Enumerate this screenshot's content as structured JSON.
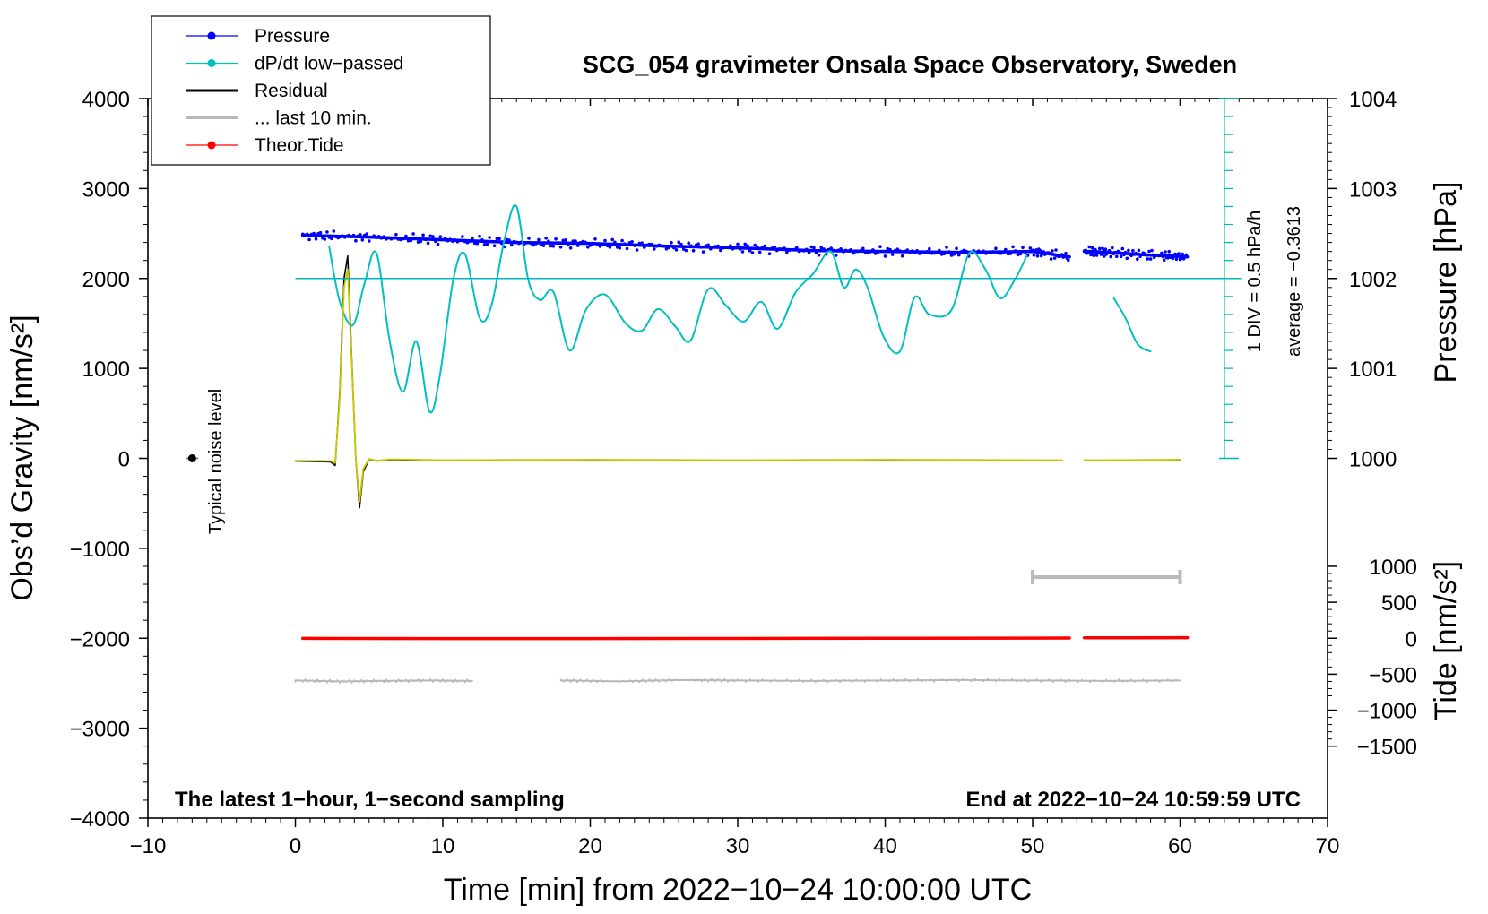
{
  "chart_data": {
    "type": "line",
    "title": "SCG_054 gravimeter Onsala Space Observatory, Sweden",
    "xlabel": "Time [min] from 2022−10−24 10:00:00 UTC",
    "ylabel_left": "Obs’d Gravity [nm/s²]",
    "ylabel_right_top": "Pressure [hPa]",
    "ylabel_right_bottom": "Tide [nm/s²]",
    "xlim": [
      -10,
      70
    ],
    "ylim_left": [
      -4000,
      4000
    ],
    "x_ticks": [
      -10,
      0,
      10,
      20,
      30,
      40,
      50,
      60,
      70
    ],
    "x_tick_labels": [
      "−10",
      "0",
      "10",
      "20",
      "30",
      "40",
      "50",
      "60",
      "70"
    ],
    "y_left_ticks": [
      4000,
      3000,
      2000,
      1000,
      0,
      -1000,
      -2000,
      -3000,
      -4000
    ],
    "y_left_tick_labels": [
      "4000",
      "3000",
      "2000",
      "1000",
      "0",
      "−1000",
      "−2000",
      "−3000",
      "−4000"
    ],
    "pressure_axis": {
      "ticks": [
        1000,
        1001,
        1002,
        1003,
        1004
      ],
      "tick_labels": [
        "1000",
        "1001",
        "1002",
        "1003",
        "1004"
      ],
      "left_units_per_hpa": 1000,
      "ref_left": 2000,
      "ref_hpa": 1002
    },
    "tide_axis": {
      "ticks": [
        1000,
        500,
        0,
        -500,
        -1000,
        -1500
      ],
      "tick_labels": [
        "1000",
        "500",
        "0",
        "−500",
        "−1000",
        "−1500"
      ],
      "left_units_per_tide": 0.8,
      "ref_left": -2000,
      "ref_tide": 0
    },
    "legend": [
      {
        "label": "Pressure",
        "color": "#0000ff",
        "marker": true
      },
      {
        "label": "dP/dt low−passed",
        "color": "#00c0c0",
        "marker": true
      },
      {
        "label": "Residual",
        "color": "#000000",
        "marker": false
      },
      {
        "label": "... last 10 min.",
        "color": "#b8b8b8",
        "marker": false
      },
      {
        "label": "Theor.Tide",
        "color": "#ff0000",
        "marker": true
      }
    ],
    "annotations": {
      "noise_label": "Typical noise level",
      "noise_x": -7,
      "noise_y": 0,
      "div_label": "1 DIV = 0.5 hPa/h",
      "avg_label": "average = −0.3613",
      "bottom_left": "The latest 1−hour, 1−second sampling",
      "bottom_right": "End at 2022−10−24 10:59:59 UTC",
      "dpdt_baseline_left": 2000,
      "div_scale_x": 63,
      "div_scale_range_left": [
        0,
        4000
      ],
      "last10_bar_x": [
        50,
        60
      ],
      "last10_bar_left": -1320
    },
    "series": [
      {
        "name": "Pressure",
        "color": "#0000ff",
        "unit": "hPa",
        "segments": [
          {
            "x": [
              0.5,
              5,
              10,
              15,
              20,
              25,
              30,
              35,
              40,
              45,
              50,
              52.5
            ],
            "y": [
              1002.48,
              1002.46,
              1002.43,
              1002.4,
              1002.39,
              1002.36,
              1002.34,
              1002.31,
              1002.3,
              1002.29,
              1002.3,
              1002.24
            ]
          },
          {
            "x": [
              53.5,
              55,
              58,
              60.5
            ],
            "y": [
              1002.3,
              1002.29,
              1002.26,
              1002.24
            ]
          }
        ]
      },
      {
        "name": "dP/dt low-passed",
        "color": "#00c0c0",
        "unit": "nm/s² (plotted)",
        "segments": [
          {
            "x": [
              2.3,
              3.0,
              3.9,
              4.7,
              5.5,
              6.4,
              7.3,
              8.2,
              9.1,
              9.8,
              10.7,
              11.5,
              12.5,
              13.3,
              14.2,
              15.0,
              15.8,
              16.6,
              17.5,
              18.6,
              19.7,
              21.0,
              22.4,
              23.5,
              24.6,
              25.8,
              26.8,
              28.0,
              29.2,
              30.4,
              31.6,
              32.7,
              33.9,
              35.1,
              36.3,
              37.2,
              38.0,
              38.8,
              39.9,
              41.0,
              42.0,
              43.0,
              44.5,
              45.7,
              46.8,
              47.8,
              48.8,
              49.6
            ],
            "y": [
              2350,
              1750,
              1480,
              1950,
              2280,
              1300,
              740,
              1300,
              520,
              920,
              1980,
              2270,
              1560,
              1700,
              2450,
              2800,
              1980,
              1760,
              1850,
              1200,
              1650,
              1820,
              1500,
              1420,
              1660,
              1460,
              1310,
              1880,
              1700,
              1520,
              1740,
              1440,
              1840,
              2050,
              2300,
              1900,
              2100,
              1900,
              1350,
              1190,
              1790,
              1600,
              1650,
              2280,
              2100,
              1780,
              1990,
              2250
            ]
          },
          {
            "x": [
              55.5,
              56.3,
              57.0,
              57.5,
              58.0
            ],
            "y": [
              1780,
              1560,
              1300,
              1220,
              1190
            ]
          }
        ]
      },
      {
        "name": "Residual",
        "color": "#000000",
        "unit": "nm/s²",
        "segments": [
          {
            "x": [
              0,
              2.4,
              2.7,
              3.0,
              3.3,
              3.55,
              3.8,
              4.1,
              4.35,
              4.6,
              5.0,
              5.5,
              6.5,
              10,
              20,
              30,
              40,
              52
            ],
            "y": [
              -30,
              -40,
              -80,
              700,
              2000,
              2250,
              1200,
              0,
              -550,
              -150,
              -10,
              -30,
              -15,
              -25,
              -20,
              -25,
              -20,
              -25
            ]
          },
          {
            "x": [
              53.5,
              60
            ],
            "y": [
              -25,
              -20
            ]
          }
        ]
      },
      {
        "name": "Residual (yellow overlay)",
        "color": "#c8c800",
        "unit": "nm/s²",
        "segments": [
          {
            "x": [
              0,
              2.4,
              2.7,
              3.0,
              3.3,
              3.55,
              3.8,
              4.1,
              4.35,
              4.6,
              5.0,
              5.5,
              6.5,
              10,
              20,
              30,
              40,
              52
            ],
            "y": [
              -25,
              -30,
              -50,
              650,
              1900,
              2100,
              1150,
              0,
              -480,
              -120,
              -5,
              -25,
              -10,
              -20,
              -15,
              -20,
              -15,
              -20
            ]
          },
          {
            "x": [
              53.5,
              60
            ],
            "y": [
              -20,
              -15
            ]
          }
        ]
      },
      {
        "name": "... last 10 min. (offset trace)",
        "color": "#b8b8b8",
        "unit": "nm/s²",
        "segments": [
          {
            "x": [
              0,
              3,
              6,
              9,
              12
            ],
            "y": [
              -2470,
              -2480,
              -2475,
              -2470,
              -2475
            ]
          },
          {
            "x": [
              18,
              22,
              26,
              30,
              35,
              40,
              45,
              50,
              55,
              60
            ],
            "y": [
              -2470,
              -2480,
              -2465,
              -2470,
              -2475,
              -2470,
              -2465,
              -2470,
              -2475,
              -2470
            ]
          }
        ]
      },
      {
        "name": "Theor.Tide",
        "color": "#ff0000",
        "unit": "nm/s² (tide)",
        "segments": [
          {
            "x": [
              0.5,
              10,
              20,
              30,
              40,
              52.5
            ],
            "y": [
              -2,
              -4,
              -4,
              -3,
              -1,
              3
            ]
          },
          {
            "x": [
              53.5,
              60.5
            ],
            "y": [
              5,
              8
            ]
          }
        ]
      }
    ]
  }
}
